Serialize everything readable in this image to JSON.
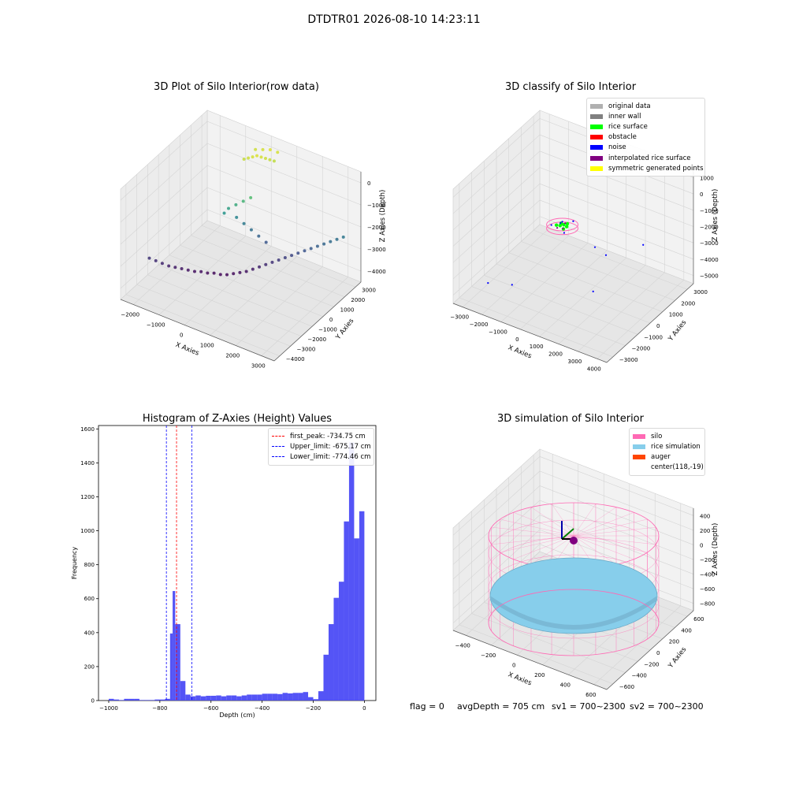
{
  "figure": {
    "suptitle": "DTDTR01 2026-08-10 14:23:11",
    "status": {
      "flag": "flag = 0",
      "avg_depth": "avgDepth = 705 cm",
      "sv1": "sv1 = 700~2300",
      "sv2": "sv2 = 700~2300"
    }
  },
  "colors": {
    "original": "#b0b0b0",
    "wall": "#808080",
    "rice_surface": "#00ff00",
    "obstacle": "#ff0000",
    "noise": "#0000ff",
    "interpolated": "#800080",
    "symmetric": "#ffff00",
    "silo": "#ff69b4",
    "rice_sim": "#87ceeb",
    "auger": "#ff4500",
    "hist": "#4b4bf5"
  },
  "plot1": {
    "title": "3D Plot of Silo Interior(row data)",
    "xlabel": "X Axies",
    "ylabel": "Y Axies",
    "zlabel": "Z Axies (Depth)",
    "xticks": [
      "−2000",
      "−1000",
      "0",
      "1000",
      "2000",
      "3000"
    ],
    "yticks": [
      "−4000",
      "−3000",
      "−2000",
      "−1000",
      "0",
      "1000",
      "2000",
      "3000"
    ],
    "zticks": [
      "−4000",
      "−3000",
      "−2000",
      "−1000",
      "0"
    ]
  },
  "plot2": {
    "title": "3D classify of Silo Interior",
    "xlabel": "X Axies",
    "ylabel": "Y Axies",
    "zlabel": "Z Axies (Depth)",
    "xticks": [
      "−3000",
      "−2000",
      "−1000",
      "0",
      "1000",
      "2000",
      "3000",
      "4000"
    ],
    "yticks": [
      "−3000",
      "−2000",
      "−1000",
      "0",
      "1000",
      "2000",
      "3000"
    ],
    "zticks": [
      "−5000",
      "−4000",
      "−3000",
      "−2000",
      "−1000",
      "0",
      "1000"
    ],
    "legend": [
      {
        "label": "original data",
        "color": "#b0b0b0"
      },
      {
        "label": "inner wall",
        "color": "#808080"
      },
      {
        "label": "rice surface",
        "color": "#00ff00"
      },
      {
        "label": "obstacle",
        "color": "#ff0000"
      },
      {
        "label": "noise",
        "color": "#0000ff"
      },
      {
        "label": "interpolated rice surface",
        "color": "#800080"
      },
      {
        "label": "symmetric generated points",
        "color": "#ffff00"
      }
    ]
  },
  "plot3": {
    "title": "Histogram of Z-Axies (Height) Values",
    "xlabel": "Depth (cm)",
    "ylabel": "Frequency",
    "legend": [
      {
        "label": "first_peak: -734.75 cm",
        "color": "#ff0000"
      },
      {
        "label": "Upper_limit: -675.17 cm",
        "color": "#0000ff"
      },
      {
        "label": "Lower_limit: -774.46 cm",
        "color": "#0000ff"
      }
    ]
  },
  "plot4": {
    "title": "3D simulation of Silo Interior",
    "xlabel": "X Axies",
    "ylabel": "Y Axies",
    "zlabel": "Z Axies (Depth)",
    "xticks": [
      "−400",
      "−200",
      "0",
      "200",
      "400",
      "600"
    ],
    "yticks": [
      "−600",
      "−400",
      "−200",
      "0",
      "200",
      "400",
      "600"
    ],
    "zticks": [
      "−800",
      "−600",
      "−400",
      "−200",
      "0",
      "200",
      "400"
    ],
    "legend": [
      {
        "label": "silo",
        "color": "#ff69b4"
      },
      {
        "label": "rice simulation",
        "color": "#87ceeb"
      },
      {
        "label": "auger",
        "color": "#ff4500"
      },
      {
        "label": "center(118,-19)",
        "color": ""
      }
    ]
  },
  "chart_data": [
    {
      "type": "scatter",
      "title": "3D Plot of Silo Interior(row data)",
      "xlabel": "X Axies",
      "ylabel": "Y Axies",
      "zlabel": "Z Axies (Depth)",
      "xlim": [
        -2000,
        3000
      ],
      "ylim": [
        -4000,
        3000
      ],
      "zlim": [
        -4500,
        0
      ],
      "colormap": "viridis",
      "grid": true,
      "points": [
        [
          -1950,
          -1800,
          -3800
        ],
        [
          -1800,
          -1650,
          -3900
        ],
        [
          -1650,
          -1500,
          -4000
        ],
        [
          -1500,
          -1350,
          -4100
        ],
        [
          -1350,
          -1200,
          -4150
        ],
        [
          -1200,
          -1050,
          -4200
        ],
        [
          -1050,
          -900,
          -4250
        ],
        [
          -900,
          -750,
          -4300
        ],
        [
          -750,
          -600,
          -4300
        ],
        [
          -600,
          -450,
          -4350
        ],
        [
          -450,
          -300,
          -4350
        ],
        [
          -300,
          -150,
          -4400
        ],
        [
          -150,
          0,
          -4400
        ],
        [
          0,
          150,
          -4350
        ],
        [
          150,
          300,
          -4300
        ],
        [
          300,
          450,
          -4250
        ],
        [
          450,
          600,
          -4150
        ],
        [
          600,
          750,
          -4050
        ],
        [
          750,
          900,
          -3950
        ],
        [
          900,
          1050,
          -3850
        ],
        [
          1050,
          1200,
          -3750
        ],
        [
          1200,
          1350,
          -3650
        ],
        [
          1350,
          1500,
          -3550
        ],
        [
          1500,
          1650,
          -3450
        ],
        [
          1650,
          1800,
          -3350
        ],
        [
          1800,
          1950,
          -3250
        ],
        [
          1950,
          2100,
          -3150
        ],
        [
          2100,
          2250,
          -3050
        ],
        [
          2250,
          2400,
          -2950
        ],
        [
          2400,
          2550,
          -2850
        ],
        [
          2550,
          2700,
          -2750
        ],
        [
          -300,
          500,
          -2000
        ],
        [
          -100,
          600,
          -1800
        ],
        [
          100,
          700,
          -1600
        ],
        [
          300,
          800,
          -1400
        ],
        [
          -200,
          900,
          -2500
        ],
        [
          0,
          1000,
          -2700
        ],
        [
          200,
          1100,
          -2900
        ],
        [
          400,
          1200,
          -3100
        ],
        [
          600,
          1300,
          -3300
        ],
        [
          -400,
          400,
          -2200
        ],
        [
          -200,
          1500,
          -400
        ],
        [
          -100,
          1600,
          -350
        ],
        [
          0,
          1700,
          -300
        ],
        [
          100,
          1800,
          -250
        ],
        [
          200,
          1900,
          -300
        ],
        [
          300,
          2000,
          -350
        ],
        [
          400,
          2100,
          -400
        ],
        [
          500,
          2200,
          -450
        ],
        [
          -150,
          2300,
          -350
        ],
        [
          50,
          2400,
          -300
        ],
        [
          250,
          2500,
          -250
        ],
        [
          450,
          2600,
          -300
        ]
      ]
    },
    {
      "type": "scatter",
      "title": "3D classify of Silo Interior",
      "xlabel": "X Axies",
      "ylabel": "Y Axies",
      "zlabel": "Z Axies (Depth)",
      "xlim": [
        -3000,
        4000
      ],
      "ylim": [
        -3000,
        3000
      ],
      "zlim": [
        -5000,
        1000
      ],
      "series": [
        {
          "name": "rice surface",
          "points": [
            [
              -200,
              -100,
              -1650
            ],
            [
              -100,
              0,
              -1700
            ],
            [
              0,
              100,
              -1680
            ],
            [
              100,
              200,
              -1650
            ],
            [
              200,
              0,
              -1620
            ],
            [
              -150,
              150,
              -1700
            ],
            [
              150,
              -150,
              -1660
            ]
          ]
        },
        {
          "name": "noise",
          "points": [
            [
              -300,
              -300,
              -1550
            ],
            [
              300,
              300,
              -1500
            ],
            [
              -250,
              250,
              -1800
            ],
            [
              250,
              -250,
              -1750
            ],
            [
              0,
              0,
              -1450
            ],
            [
              500,
              1500,
              -3600
            ],
            [
              1200,
              1200,
              -3500
            ],
            [
              -2200,
              -1800,
              -4400
            ],
            [
              -1500,
              -1200,
              -4600
            ],
            [
              2500,
              1800,
              -2800
            ],
            [
              1800,
              -600,
              -3900
            ]
          ]
        },
        {
          "name": "interpolated rice surface",
          "points": [
            [
              -100,
              -200,
              -1680
            ],
            [
              100,
              -100,
              -1690
            ],
            [
              0,
              200,
              -1670
            ]
          ]
        }
      ],
      "legend": [
        "original data",
        "inner wall",
        "rice surface",
        "obstacle",
        "noise",
        "interpolated rice surface",
        "symmetric generated points"
      ],
      "legend_position": "upper right",
      "grid": true
    },
    {
      "type": "bar",
      "title": "Histogram of Z-Axies (Height) Values",
      "xlabel": "Depth (cm)",
      "ylabel": "Frequency",
      "xlim": [
        -1040,
        45
      ],
      "ylim": [
        0,
        1620
      ],
      "xticks": [
        -1000,
        -800,
        -600,
        -400,
        -200,
        0
      ],
      "yticks": [
        0,
        200,
        400,
        600,
        800,
        1000,
        1200,
        1400,
        1600
      ],
      "bin_width": 20,
      "bins": [
        {
          "x0": -1000,
          "x1": -980,
          "value": 10
        },
        {
          "x0": -980,
          "x1": -960,
          "value": 6
        },
        {
          "x0": -960,
          "x1": -940,
          "value": 3
        },
        {
          "x0": -940,
          "x1": -920,
          "value": 10
        },
        {
          "x0": -920,
          "x1": -900,
          "value": 10
        },
        {
          "x0": -900,
          "x1": -880,
          "value": 10
        },
        {
          "x0": -880,
          "x1": -860,
          "value": 3
        },
        {
          "x0": -860,
          "x1": -840,
          "value": 3
        },
        {
          "x0": -840,
          "x1": -820,
          "value": 3
        },
        {
          "x0": -820,
          "x1": -800,
          "value": 6
        },
        {
          "x0": -800,
          "x1": -780,
          "value": 6
        },
        {
          "x0": -780,
          "x1": -760,
          "value": 10
        },
        {
          "x0": -760,
          "x1": -750,
          "value": 395
        },
        {
          "x0": -750,
          "x1": -740,
          "value": 645
        },
        {
          "x0": -740,
          "x1": -720,
          "value": 450
        },
        {
          "x0": -720,
          "x1": -700,
          "value": 115
        },
        {
          "x0": -700,
          "x1": -680,
          "value": 35
        },
        {
          "x0": -680,
          "x1": -660,
          "value": 25
        },
        {
          "x0": -660,
          "x1": -640,
          "value": 30
        },
        {
          "x0": -640,
          "x1": -620,
          "value": 25
        },
        {
          "x0": -620,
          "x1": -600,
          "value": 28
        },
        {
          "x0": -600,
          "x1": -580,
          "value": 28
        },
        {
          "x0": -580,
          "x1": -560,
          "value": 30
        },
        {
          "x0": -560,
          "x1": -540,
          "value": 25
        },
        {
          "x0": -540,
          "x1": -520,
          "value": 30
        },
        {
          "x0": -520,
          "x1": -500,
          "value": 30
        },
        {
          "x0": -500,
          "x1": -480,
          "value": 25
        },
        {
          "x0": -480,
          "x1": -460,
          "value": 30
        },
        {
          "x0": -460,
          "x1": -440,
          "value": 35
        },
        {
          "x0": -440,
          "x1": -420,
          "value": 35
        },
        {
          "x0": -420,
          "x1": -400,
          "value": 35
        },
        {
          "x0": -400,
          "x1": -380,
          "value": 40
        },
        {
          "x0": -380,
          "x1": -360,
          "value": 40
        },
        {
          "x0": -360,
          "x1": -340,
          "value": 40
        },
        {
          "x0": -340,
          "x1": -320,
          "value": 38
        },
        {
          "x0": -320,
          "x1": -300,
          "value": 45
        },
        {
          "x0": -300,
          "x1": -280,
          "value": 42
        },
        {
          "x0": -280,
          "x1": -260,
          "value": 45
        },
        {
          "x0": -260,
          "x1": -240,
          "value": 45
        },
        {
          "x0": -240,
          "x1": -220,
          "value": 50
        },
        {
          "x0": -220,
          "x1": -200,
          "value": 20
        },
        {
          "x0": -200,
          "x1": -180,
          "value": 8
        },
        {
          "x0": -180,
          "x1": -160,
          "value": 55
        },
        {
          "x0": -160,
          "x1": -140,
          "value": 270
        },
        {
          "x0": -140,
          "x1": -120,
          "value": 450
        },
        {
          "x0": -120,
          "x1": -100,
          "value": 605
        },
        {
          "x0": -100,
          "x1": -80,
          "value": 700
        },
        {
          "x0": -80,
          "x1": -60,
          "value": 1055
        },
        {
          "x0": -60,
          "x1": -40,
          "value": 1520
        },
        {
          "x0": -40,
          "x1": -20,
          "value": 955
        },
        {
          "x0": -20,
          "x1": 0,
          "value": 1115
        }
      ],
      "vlines": [
        {
          "x": -734.75,
          "label": "first_peak: -734.75 cm",
          "color": "#ff0000"
        },
        {
          "x": -675.17,
          "label": "Upper_limit: -675.17 cm",
          "color": "#0000ff"
        },
        {
          "x": -774.46,
          "label": "Lower_limit: -774.46 cm",
          "color": "#0000ff"
        }
      ],
      "legend_position": "upper right"
    },
    {
      "type": "surface",
      "title": "3D simulation of Silo Interior",
      "xlabel": "X Axies",
      "ylabel": "Y Axies",
      "zlabel": "Z Axies (Depth)",
      "xlim": [
        -500,
        700
      ],
      "ylim": [
        -700,
        700
      ],
      "zlim": [
        -900,
        450
      ],
      "series": [
        {
          "name": "silo",
          "kind": "wireframe cylinder",
          "z_range": [
            -900,
            0
          ]
        },
        {
          "name": "rice simulation",
          "kind": "surface",
          "z_mean": -705
        },
        {
          "name": "auger",
          "kind": "marker"
        }
      ],
      "center": [
        118,
        -19
      ],
      "legend": [
        "silo",
        "rice simulation",
        "auger",
        "center(118,-19)"
      ],
      "legend_position": "upper right",
      "grid": true
    }
  ]
}
